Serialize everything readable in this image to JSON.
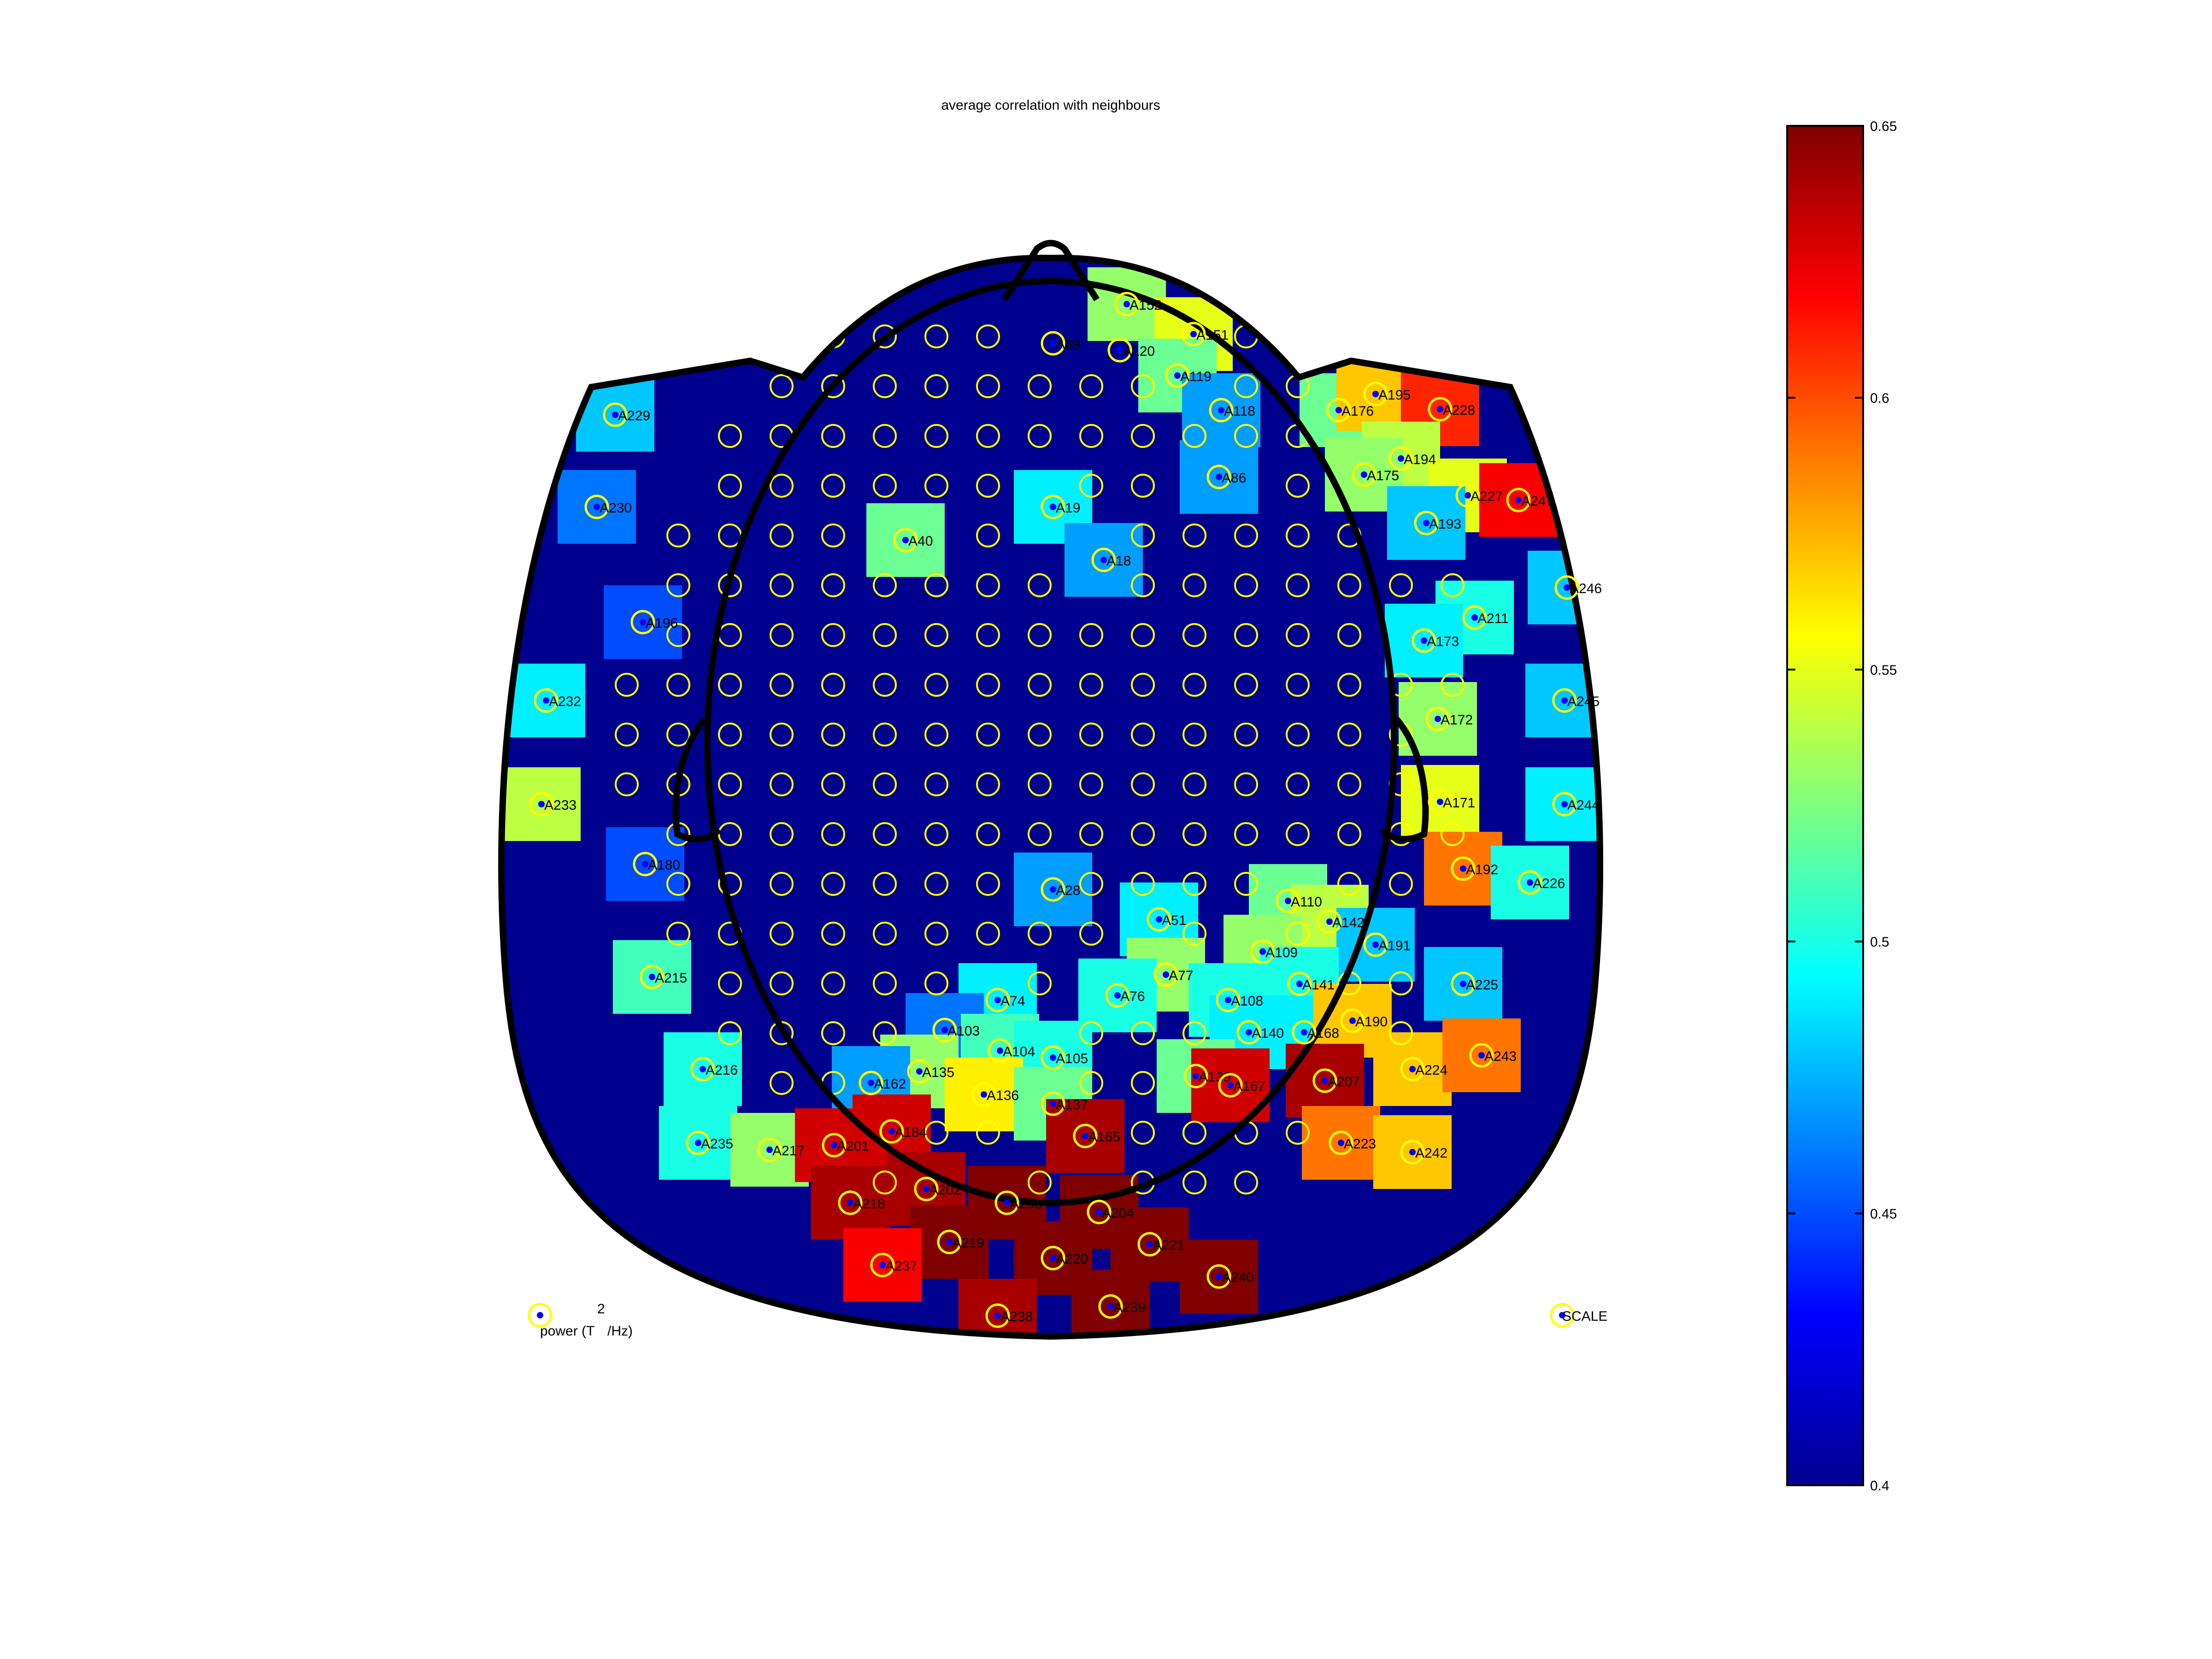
{
  "figure": {
    "title": "average correlation with neighbours"
  },
  "chart_data": {
    "type": "heatmap",
    "title": "average correlation with neighbours",
    "colormap": "jet",
    "clim": [
      0.4,
      0.65
    ],
    "colorbar": {
      "position": "right",
      "ticks": [
        "0.4",
        "0.45",
        "0.5",
        "0.55",
        "0.6",
        "0.65"
      ]
    },
    "legend_labels": {
      "power_text": "power (T",
      "power_exponent": "2",
      "power_suffix": "/Hz)",
      "scale_text": "SCALE"
    },
    "head_outline": [
      "head",
      "nose",
      "left-ear",
      "right-ear",
      "inner-head"
    ],
    "channels": [
      {
        "name": "A152",
        "v": 0.53
      },
      {
        "name": "A151",
        "v": 0.55
      },
      {
        "name": "A119",
        "v": 0.52
      },
      {
        "name": "A120",
        "v": 0.44
      },
      {
        "name": "A89",
        "v": 0.44
      },
      {
        "name": "A118",
        "v": 0.47
      },
      {
        "name": "A176",
        "v": 0.52
      },
      {
        "name": "A195",
        "v": 0.57
      },
      {
        "name": "A228",
        "v": 0.61
      },
      {
        "name": "A229",
        "v": 0.48
      },
      {
        "name": "A194",
        "v": 0.54
      },
      {
        "name": "A175",
        "v": 0.53
      },
      {
        "name": "A86",
        "v": 0.47
      },
      {
        "name": "A19",
        "v": 0.49
      },
      {
        "name": "A230",
        "v": 0.46
      },
      {
        "name": "A227",
        "v": 0.55
      },
      {
        "name": "A247",
        "v": 0.62
      },
      {
        "name": "A193",
        "v": 0.48
      },
      {
        "name": "A40",
        "v": 0.52
      },
      {
        "name": "A18",
        "v": 0.47
      },
      {
        "name": "A246",
        "v": 0.48
      },
      {
        "name": "A211",
        "v": 0.5
      },
      {
        "name": "A173",
        "v": 0.49
      },
      {
        "name": "A196",
        "v": 0.45
      },
      {
        "name": "A232",
        "v": 0.49
      },
      {
        "name": "A172",
        "v": 0.53
      },
      {
        "name": "A245",
        "v": 0.48
      },
      {
        "name": "A233",
        "v": 0.54
      },
      {
        "name": "A171",
        "v": 0.55
      },
      {
        "name": "A244",
        "v": 0.49
      },
      {
        "name": "A180",
        "v": 0.45
      },
      {
        "name": "A192",
        "v": 0.59
      },
      {
        "name": "A226",
        "v": 0.5
      },
      {
        "name": "A28",
        "v": 0.47
      },
      {
        "name": "A110",
        "v": 0.52
      },
      {
        "name": "A51",
        "v": 0.49
      },
      {
        "name": "A142",
        "v": 0.54
      },
      {
        "name": "A109",
        "v": 0.53
      },
      {
        "name": "A191",
        "v": 0.48
      },
      {
        "name": "A215",
        "v": 0.51
      },
      {
        "name": "A77",
        "v": 0.53
      },
      {
        "name": "A76",
        "v": 0.5
      },
      {
        "name": "A108",
        "v": 0.5
      },
      {
        "name": "A141",
        "v": 0.5
      },
      {
        "name": "A225",
        "v": 0.48
      },
      {
        "name": "A74",
        "v": 0.49
      },
      {
        "name": "A103",
        "v": 0.46
      },
      {
        "name": "A140",
        "v": 0.49
      },
      {
        "name": "A168",
        "v": 0.49
      },
      {
        "name": "A190",
        "v": 0.57
      },
      {
        "name": "A224",
        "v": 0.57
      },
      {
        "name": "A243",
        "v": 0.59
      },
      {
        "name": "A216",
        "v": 0.5
      },
      {
        "name": "A104",
        "v": 0.51
      },
      {
        "name": "A105",
        "v": 0.5
      },
      {
        "name": "A135",
        "v": 0.53
      },
      {
        "name": "A162",
        "v": 0.47
      },
      {
        "name": "A136",
        "v": 0.56
      },
      {
        "name": "A137",
        "v": 0.52
      },
      {
        "name": "A139",
        "v": 0.52
      },
      {
        "name": "A167",
        "v": 0.63
      },
      {
        "name": "A207",
        "v": 0.64
      },
      {
        "name": "A235",
        "v": 0.5
      },
      {
        "name": "A217",
        "v": 0.53
      },
      {
        "name": "A201",
        "v": 0.63
      },
      {
        "name": "A184",
        "v": 0.63
      },
      {
        "name": "A165",
        "v": 0.64
      },
      {
        "name": "A223",
        "v": 0.59
      },
      {
        "name": "A242",
        "v": 0.57
      },
      {
        "name": "A202",
        "v": 0.64
      },
      {
        "name": "A218",
        "v": 0.64
      },
      {
        "name": "A203",
        "v": 0.65
      },
      {
        "name": "A204",
        "v": 0.65
      },
      {
        "name": "A221",
        "v": 0.65
      },
      {
        "name": "A219",
        "v": 0.65
      },
      {
        "name": "A220",
        "v": 0.65
      },
      {
        "name": "A237",
        "v": 0.62
      },
      {
        "name": "A240",
        "v": 0.65
      },
      {
        "name": "A238",
        "v": 0.64
      },
      {
        "name": "A239",
        "v": 0.65
      }
    ]
  }
}
